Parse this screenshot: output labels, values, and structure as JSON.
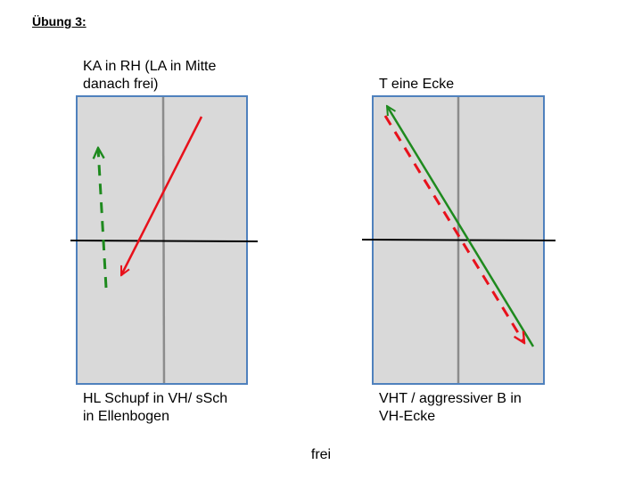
{
  "title": "Übung 3:",
  "left_diagram": {
    "top_text_line1": "KA in RH (LA in Mitte",
    "top_text_line2": "danach frei)",
    "bottom_text_line1": "HL Schupf in VH/ sSch",
    "bottom_text_line2": "in Ellenbogen"
  },
  "right_diagram": {
    "top_text": "T eine Ecke",
    "bottom_text_line1": "VHT / aggressiver B in",
    "bottom_text_line2": "VH-Ecke"
  },
  "footer": "frei",
  "colors": {
    "table_fill": "#d9d9d9",
    "table_border": "#4f81bd",
    "center_line": "#8c8c8c",
    "net": "#000000",
    "red_arrow": "#e8111b",
    "green_arrow": "#1e8a1e"
  }
}
